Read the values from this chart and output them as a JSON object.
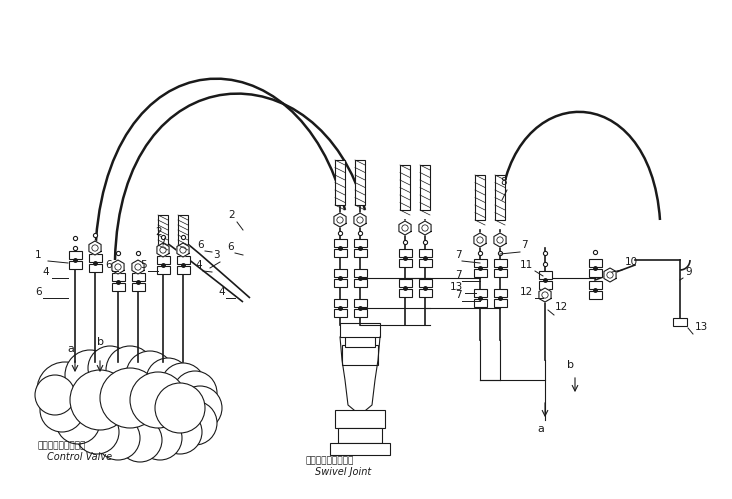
{
  "bg_color": "#ffffff",
  "line_color": "#1a1a1a",
  "control_valve_jp": "コントロールバルブ",
  "control_valve_en": "Control Valve",
  "swivel_joint_jp": "スイベルジョイント",
  "swivel_joint_en": "Swivel Joint",
  "figsize": [
    7.32,
    4.99
  ],
  "dpi": 100
}
